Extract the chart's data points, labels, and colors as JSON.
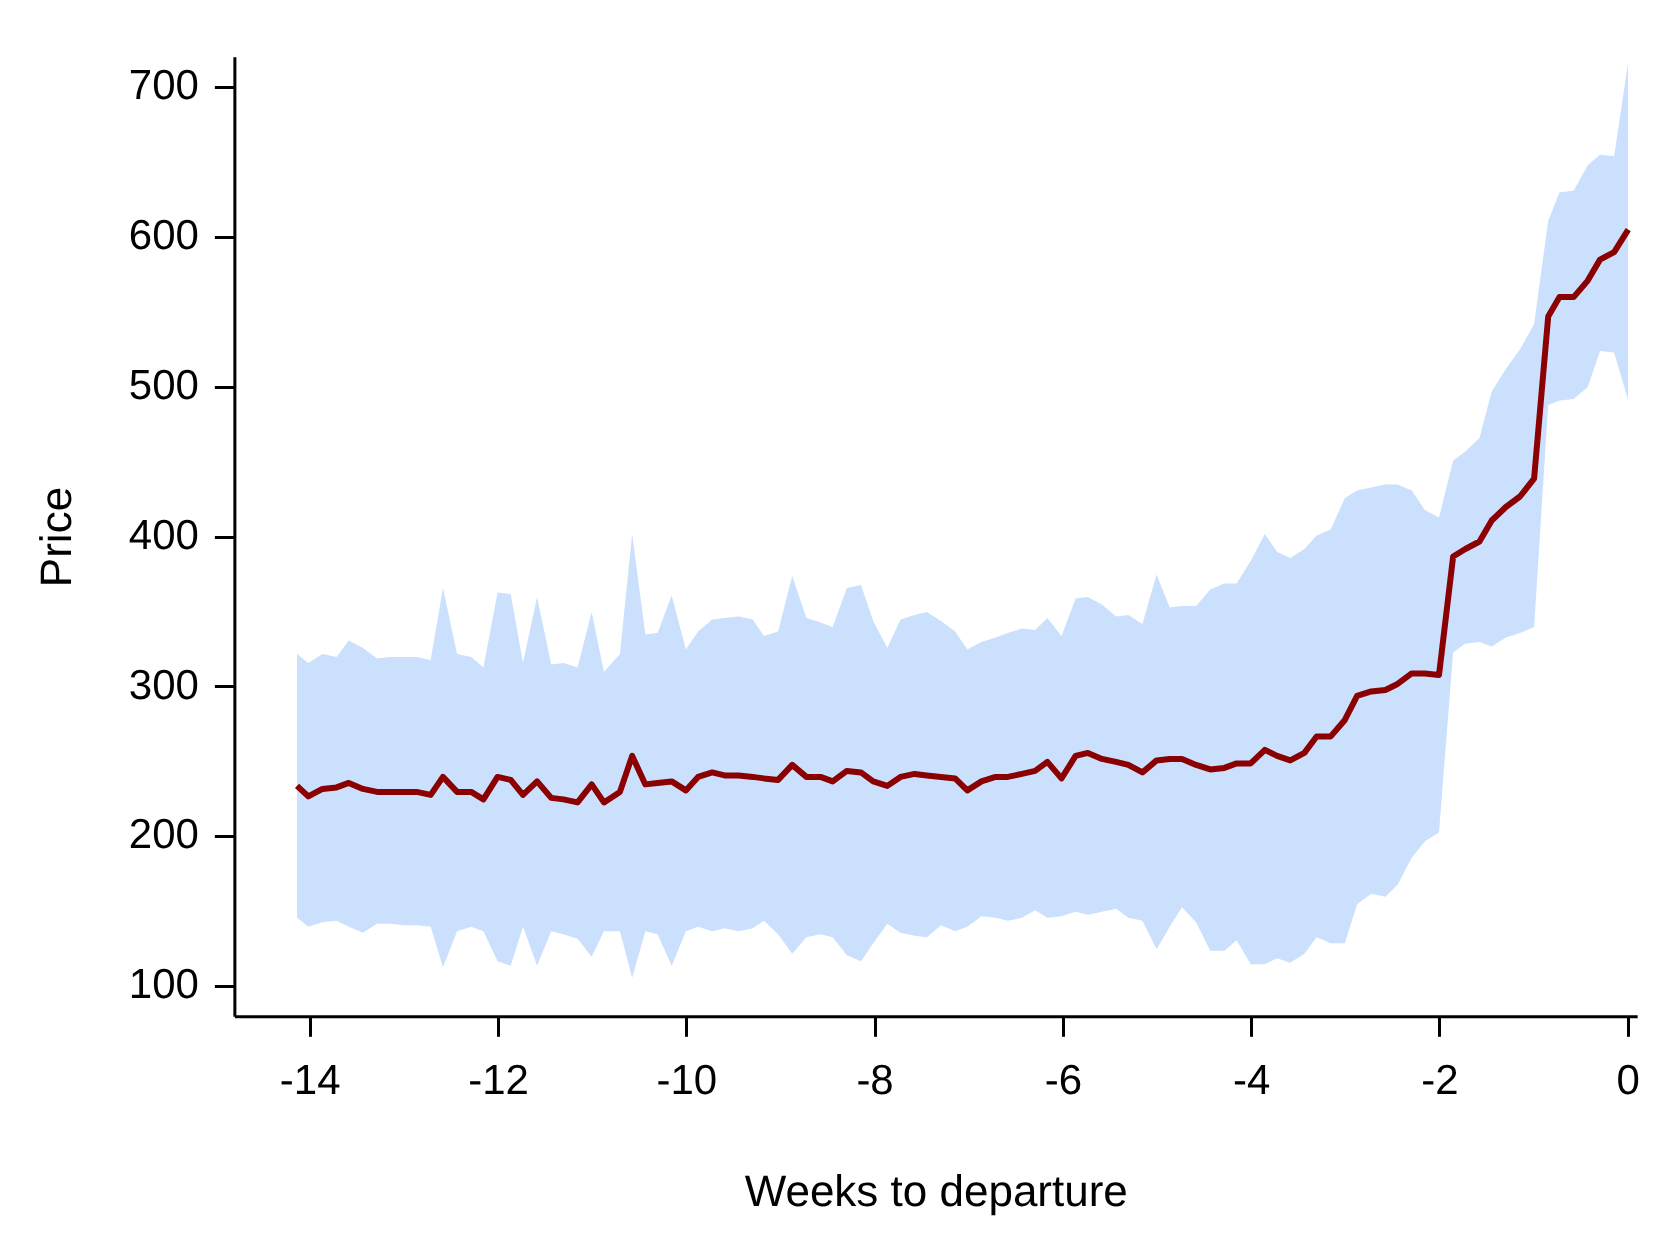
{
  "chart_data": {
    "type": "line",
    "xlabel": "Weeks to departure",
    "ylabel": "Price",
    "xlim": [
      -14.8,
      0.1
    ],
    "ylim": [
      80,
      720
    ],
    "xticks": [
      -14,
      -12,
      -10,
      -8,
      -6,
      -4,
      -2,
      0
    ],
    "yticks": [
      100,
      200,
      300,
      400,
      500,
      600,
      700
    ],
    "grid": false,
    "legend": false,
    "marker": "none",
    "line_style": "solid",
    "x": [
      -14.14,
      -14.02,
      -13.87,
      -13.72,
      -13.59,
      -13.44,
      -13.29,
      -13.15,
      -13.01,
      -12.87,
      -12.72,
      -12.59,
      -12.44,
      -12.29,
      -12.16,
      -12.01,
      -11.87,
      -11.74,
      -11.59,
      -11.44,
      -11.31,
      -11.16,
      -11.01,
      -10.88,
      -10.71,
      -10.58,
      -10.44,
      -10.31,
      -10.16,
      -10.01,
      -9.88,
      -9.73,
      -9.6,
      -9.45,
      -9.3,
      -9.18,
      -9.03,
      -8.88,
      -8.73,
      -8.58,
      -8.45,
      -8.3,
      -8.15,
      -8.02,
      -7.87,
      -7.73,
      -7.58,
      -7.45,
      -7.3,
      -7.15,
      -7.02,
      -6.87,
      -6.72,
      -6.59,
      -6.44,
      -6.3,
      -6.17,
      -6.02,
      -5.87,
      -5.74,
      -5.59,
      -5.44,
      -5.31,
      -5.16,
      -5.01,
      -4.87,
      -4.74,
      -4.59,
      -4.44,
      -4.29,
      -4.16,
      -4.01,
      -3.86,
      -3.73,
      -3.59,
      -3.44,
      -3.31,
      -3.16,
      -3.01,
      -2.88,
      -2.73,
      -2.58,
      -2.45,
      -2.3,
      -2.16,
      -2.01,
      -1.86,
      -1.73,
      -1.58,
      -1.45,
      -1.3,
      -1.15,
      -1.0,
      -0.85,
      -0.73,
      -0.58,
      -0.43,
      -0.3,
      -0.15,
      0
    ],
    "series": [
      {
        "color": "#8b0000",
        "values": [
          234,
          227,
          232,
          233,
          236,
          232,
          230,
          230,
          230,
          230,
          228,
          240,
          230,
          230,
          225,
          240,
          238,
          228,
          237,
          226,
          225,
          223,
          235,
          223,
          230,
          254,
          235,
          236,
          237,
          231,
          240,
          243,
          241,
          241,
          240,
          239,
          238,
          248,
          240,
          240,
          237,
          244,
          243,
          237,
          234,
          240,
          242,
          241,
          240,
          239,
          231,
          237,
          240,
          240,
          242,
          244,
          250,
          239,
          254,
          256,
          252,
          250,
          248,
          243,
          251,
          252,
          252,
          248,
          245,
          246,
          249,
          249,
          258,
          254,
          251,
          256,
          267,
          267,
          278,
          294,
          297,
          298,
          302,
          309,
          309,
          308,
          387,
          392,
          397,
          411,
          420,
          427,
          439,
          547,
          560,
          560,
          571,
          585,
          590,
          605
        ],
        "upper": [
          322,
          316,
          322,
          320,
          331,
          326,
          319,
          320,
          320,
          320,
          318,
          366,
          322,
          320,
          313,
          363,
          362,
          316,
          360,
          315,
          316,
          313,
          350,
          310,
          322,
          402,
          335,
          336,
          361,
          325,
          337,
          345,
          346,
          347,
          345,
          334,
          337,
          374,
          346,
          343,
          340,
          366,
          368,
          344,
          326,
          345,
          348,
          350,
          344,
          337,
          325,
          330,
          333,
          336,
          339,
          338,
          346,
          334,
          359,
          360,
          355,
          347,
          348,
          342,
          375,
          353,
          354,
          354,
          365,
          369,
          369,
          384,
          402,
          390,
          386,
          392,
          401,
          405,
          426,
          431,
          433,
          435,
          435,
          431,
          418,
          413,
          451,
          457,
          466,
          497,
          512,
          525,
          542,
          611,
          630,
          631,
          648,
          655,
          654,
          717
        ],
        "lower": [
          146,
          140,
          143,
          144,
          140,
          136,
          142,
          142,
          141,
          141,
          140,
          113,
          137,
          140,
          137,
          117,
          114,
          140,
          114,
          137,
          135,
          132,
          120,
          137,
          137,
          106,
          137,
          135,
          114,
          137,
          140,
          137,
          139,
          137,
          139,
          144,
          135,
          122,
          133,
          135,
          133,
          121,
          117,
          129,
          142,
          136,
          134,
          133,
          141,
          137,
          140,
          147,
          146,
          144,
          146,
          151,
          146,
          147,
          150,
          148,
          150,
          152,
          146,
          144,
          125,
          140,
          153,
          143,
          124,
          124,
          131,
          115,
          115,
          119,
          116,
          122,
          133,
          129,
          129,
          155,
          162,
          160,
          168,
          186,
          197,
          203,
          323,
          329,
          330,
          327,
          333,
          336,
          340,
          488,
          491,
          492,
          500,
          524,
          523,
          491
        ]
      }
    ]
  }
}
